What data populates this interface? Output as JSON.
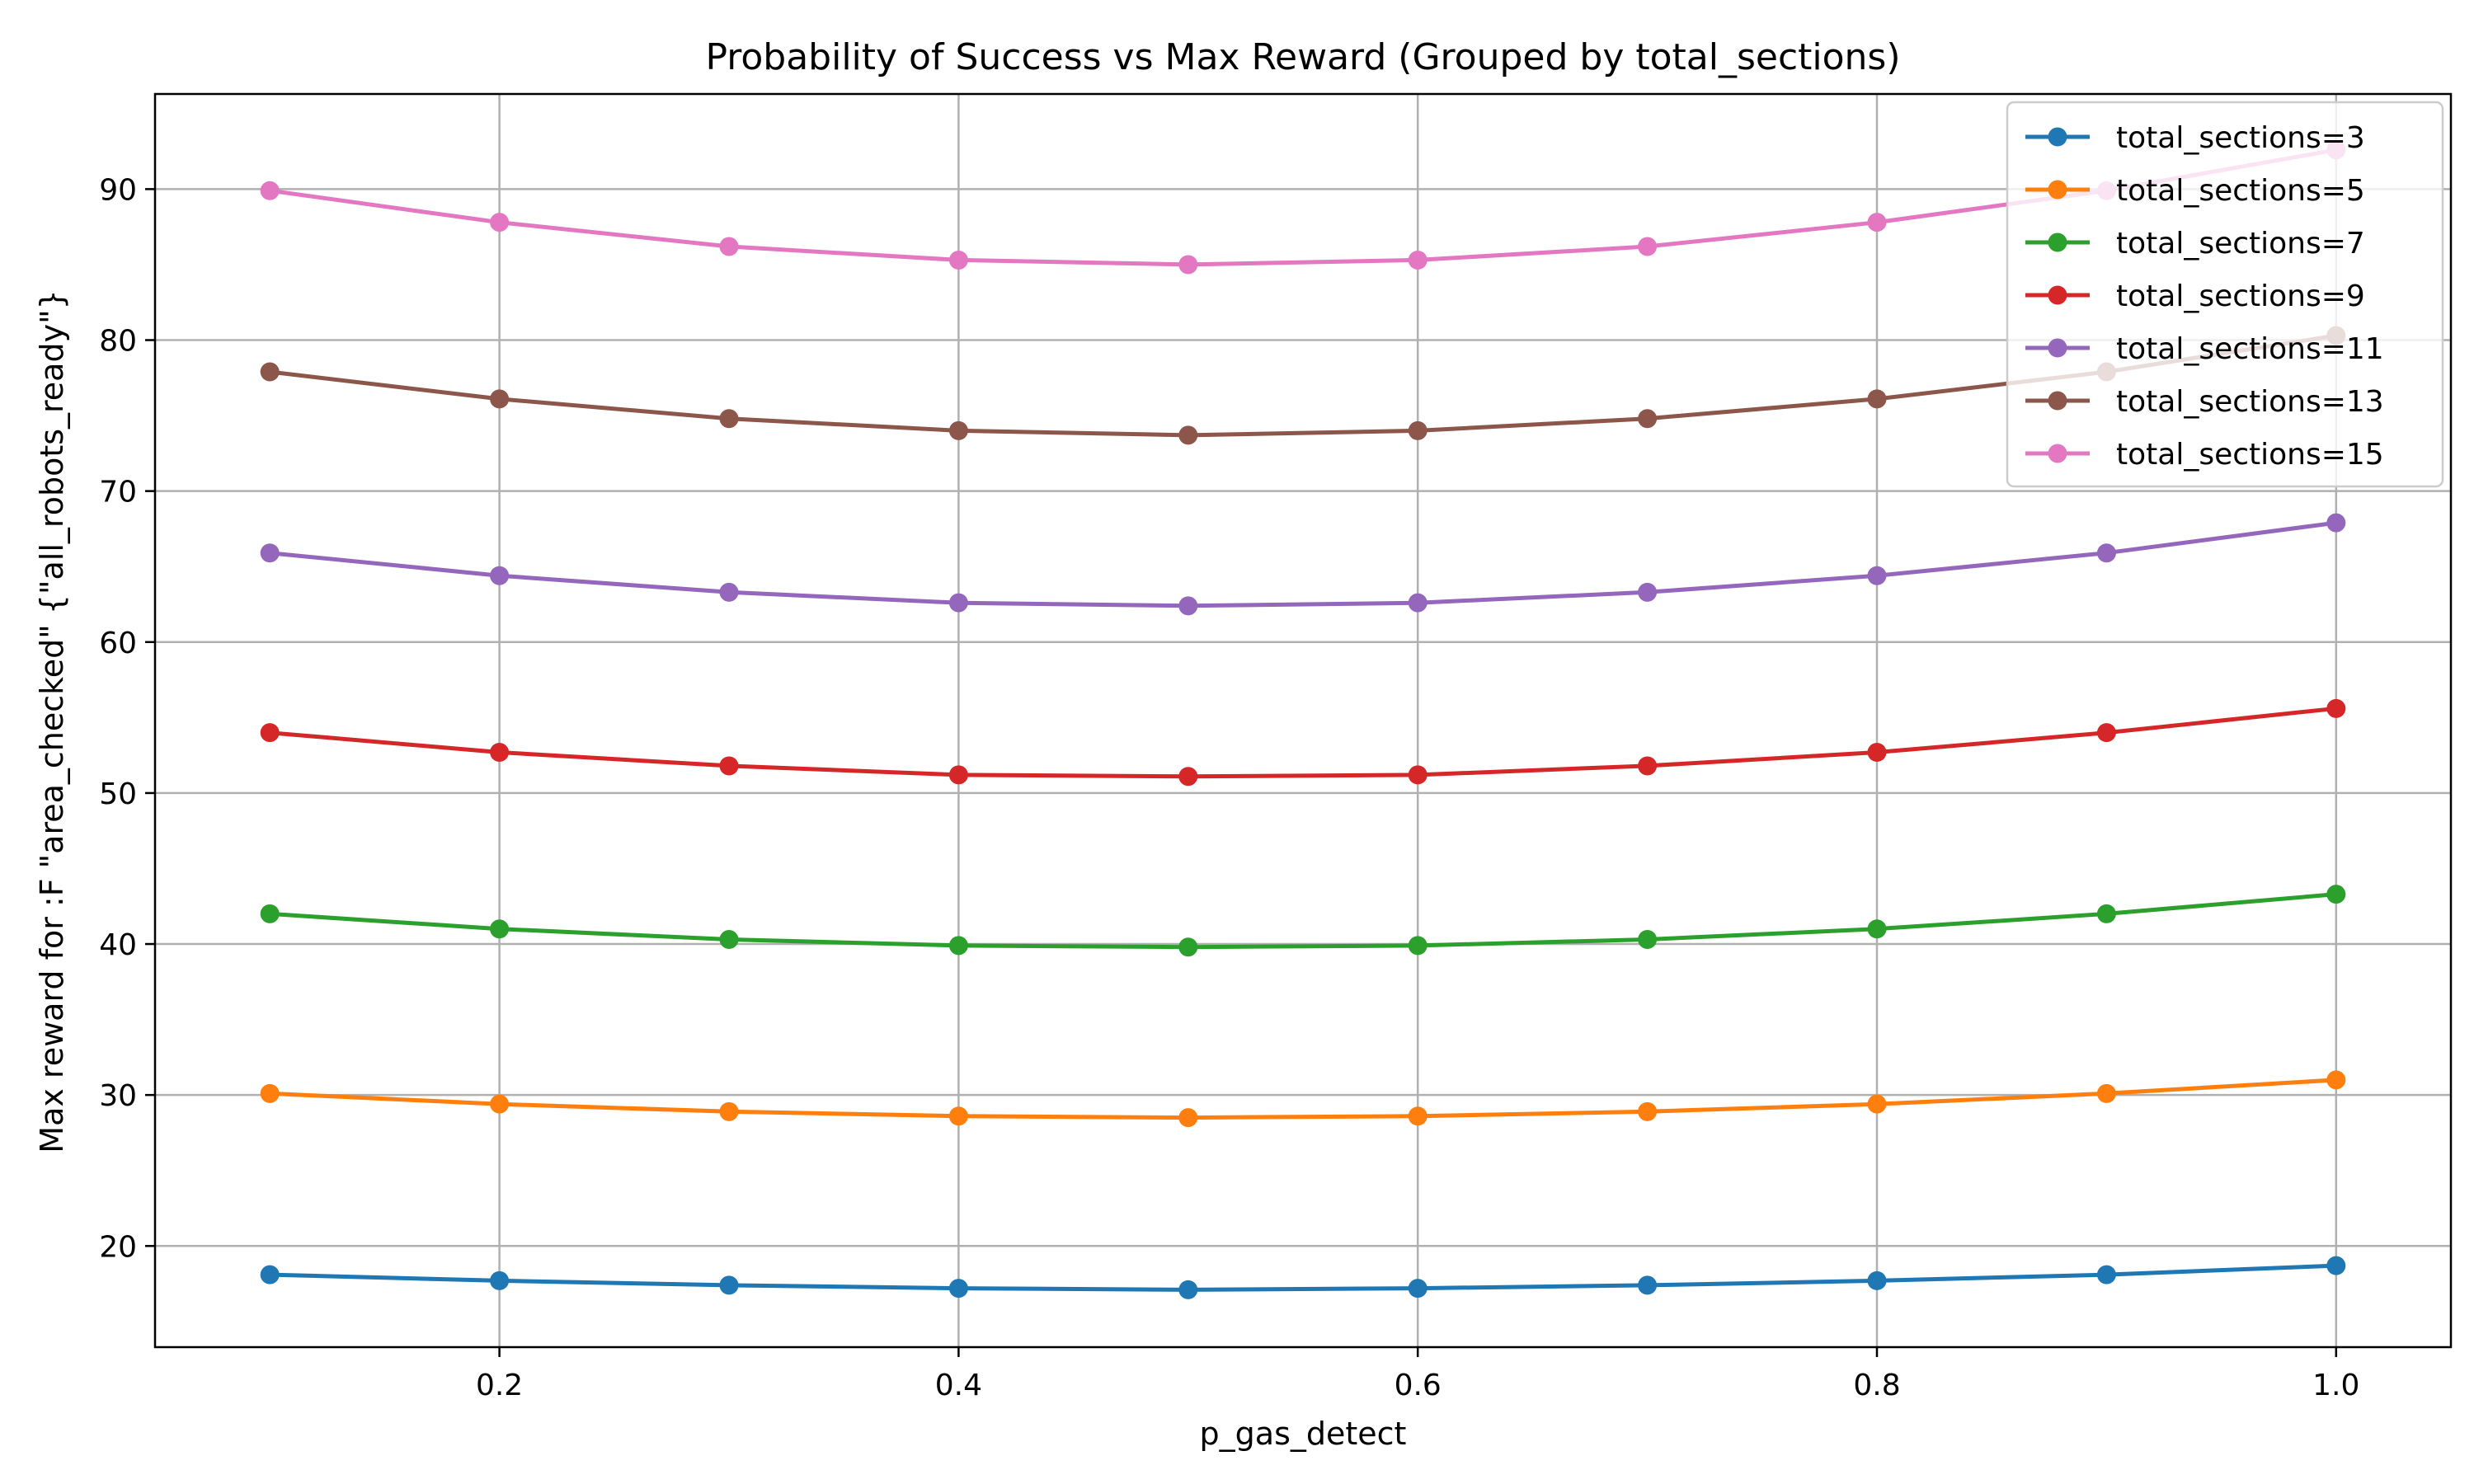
{
  "chart_data": {
    "type": "line",
    "title": "Probability of Success vs Max Reward (Grouped by total_sections)",
    "xlabel": "p_gas_detect",
    "ylabel": "Max reward for :F \"area_checked\" {\"all_robots_ready\"}",
    "xlim": [
      0.05,
      1.05
    ],
    "ylim": [
      13.3,
      96.3
    ],
    "xticks": [
      0.2,
      0.4,
      0.6,
      0.8,
      1.0
    ],
    "xtick_labels": [
      "0.2",
      "0.4",
      "0.6",
      "0.8",
      "1.0"
    ],
    "yticks": [
      20,
      30,
      40,
      50,
      60,
      70,
      80,
      90
    ],
    "ytick_labels": [
      "20",
      "30",
      "40",
      "50",
      "60",
      "70",
      "80",
      "90"
    ],
    "grid": true,
    "legend_position": "top-right",
    "x": [
      0.1,
      0.2,
      0.3,
      0.4,
      0.5,
      0.6,
      0.7,
      0.8,
      0.9,
      1.0
    ],
    "series": [
      {
        "name": "total_sections=3",
        "color": "#1f77b4",
        "values": [
          18.1,
          17.7,
          17.4,
          17.2,
          17.1,
          17.2,
          17.4,
          17.7,
          18.1,
          18.7
        ]
      },
      {
        "name": "total_sections=5",
        "color": "#ff7f0e",
        "values": [
          30.1,
          29.4,
          28.9,
          28.6,
          28.5,
          28.6,
          28.9,
          29.4,
          30.1,
          31.0
        ]
      },
      {
        "name": "total_sections=7",
        "color": "#2ca02c",
        "values": [
          42.0,
          41.0,
          40.3,
          39.9,
          39.8,
          39.9,
          40.3,
          41.0,
          42.0,
          43.3
        ]
      },
      {
        "name": "total_sections=9",
        "color": "#d62728",
        "values": [
          54.0,
          52.7,
          51.8,
          51.2,
          51.1,
          51.2,
          51.8,
          52.7,
          54.0,
          55.6
        ]
      },
      {
        "name": "total_sections=11",
        "color": "#9467bd",
        "values": [
          65.9,
          64.4,
          63.3,
          62.6,
          62.4,
          62.6,
          63.3,
          64.4,
          65.9,
          67.9
        ]
      },
      {
        "name": "total_sections=13",
        "color": "#8c564b",
        "values": [
          77.9,
          76.1,
          74.8,
          74.0,
          73.7,
          74.0,
          74.8,
          76.1,
          77.9,
          80.3
        ]
      },
      {
        "name": "total_sections=15",
        "color": "#e377c2",
        "values": [
          89.9,
          87.8,
          86.2,
          85.3,
          85.0,
          85.3,
          86.2,
          87.8,
          89.9,
          92.6
        ]
      }
    ]
  }
}
